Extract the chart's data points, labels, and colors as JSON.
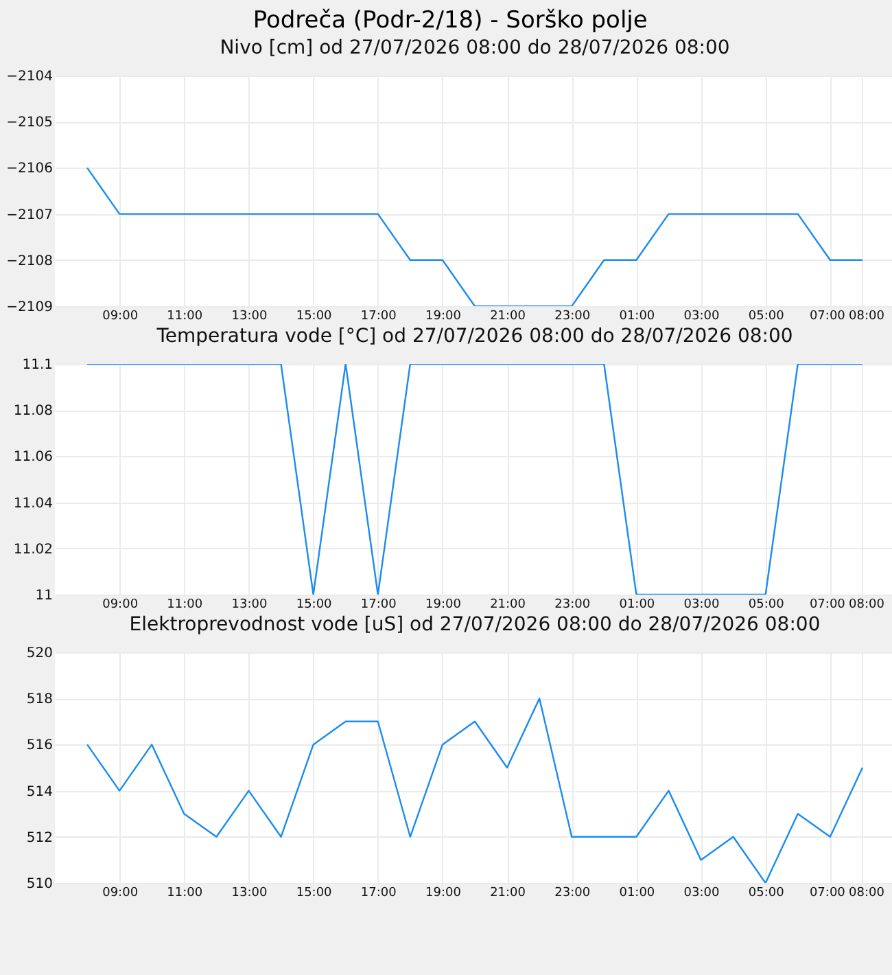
{
  "chart_data": [
    {
      "type": "line",
      "title": "Podreča (Podr-2/18) - Sorško polje",
      "subtitle": "Nivo [cm] od 27/07/2026 08:00 do 28/07/2026 08:00",
      "x": [
        "2026-07-27T08:00",
        "2026-07-27T09:00",
        "2026-07-27T10:00",
        "2026-07-27T11:00",
        "2026-07-27T12:00",
        "2026-07-27T13:00",
        "2026-07-27T14:00",
        "2026-07-27T15:00",
        "2026-07-27T16:00",
        "2026-07-27T17:00",
        "2026-07-27T18:00",
        "2026-07-27T19:00",
        "2026-07-27T20:00",
        "2026-07-27T21:00",
        "2026-07-27T22:00",
        "2026-07-27T23:00",
        "2026-07-28T00:00",
        "2026-07-28T01:00",
        "2026-07-28T02:00",
        "2026-07-28T03:00",
        "2026-07-28T04:00",
        "2026-07-28T05:00",
        "2026-07-28T06:00",
        "2026-07-28T07:00",
        "2026-07-28T08:00"
      ],
      "series": [
        {
          "color": "#1a8cf0",
          "values": [
            -2106,
            -2107,
            -2107,
            -2107,
            -2107,
            -2107,
            -2107,
            -2107,
            -2107,
            -2107,
            -2108,
            -2108,
            -2109,
            -2109,
            -2109,
            -2109,
            -2108,
            -2108,
            -2107,
            -2107,
            -2107,
            -2107,
            -2107,
            -2108,
            -2108
          ]
        }
      ],
      "xlim": [
        "2026-07-27T07:00",
        "2026-07-28T09:00"
      ],
      "xticks": [
        {
          "value": "2026-07-27T09:00",
          "label": "09:00"
        },
        {
          "value": "2026-07-27T11:00",
          "label": "11:00"
        },
        {
          "value": "2026-07-27T13:00",
          "label": "13:00"
        },
        {
          "value": "2026-07-27T15:00",
          "label": "15:00"
        },
        {
          "value": "2026-07-27T17:00",
          "label": "17:00"
        },
        {
          "value": "2026-07-27T19:00",
          "label": "19:00"
        },
        {
          "value": "2026-07-27T21:00",
          "label": "21:00"
        },
        {
          "value": "2026-07-27T23:00",
          "label": "23:00"
        },
        {
          "value": "2026-07-28T01:00",
          "label": "01:00"
        },
        {
          "value": "2026-07-28T03:00",
          "label": "03:00"
        },
        {
          "value": "2026-07-28T05:00",
          "label": "05:00"
        },
        {
          "value": "2026-07-28T07:00",
          "label": "07:00"
        },
        {
          "value": "2026-07-28T08:00",
          "label": "08:00"
        }
      ],
      "ylim": [
        -2109,
        -2104
      ],
      "yticks": [
        -2109,
        -2108,
        -2107,
        -2106,
        -2105,
        -2104
      ],
      "grid": true,
      "marker": "none",
      "line_style": "solid"
    },
    {
      "type": "line",
      "title": "Temperatura vode [°C] od 27/07/2026 08:00 do 28/07/2026 08:00",
      "x": [
        "2026-07-27T08:00",
        "2026-07-27T09:00",
        "2026-07-27T10:00",
        "2026-07-27T11:00",
        "2026-07-27T12:00",
        "2026-07-27T13:00",
        "2026-07-27T14:00",
        "2026-07-27T15:00",
        "2026-07-27T16:00",
        "2026-07-27T17:00",
        "2026-07-27T18:00",
        "2026-07-27T19:00",
        "2026-07-27T20:00",
        "2026-07-27T21:00",
        "2026-07-27T22:00",
        "2026-07-27T23:00",
        "2026-07-28T00:00",
        "2026-07-28T01:00",
        "2026-07-28T02:00",
        "2026-07-28T03:00",
        "2026-07-28T04:00",
        "2026-07-28T05:00",
        "2026-07-28T06:00",
        "2026-07-28T07:00",
        "2026-07-28T08:00"
      ],
      "series": [
        {
          "color": "#1a8cf0",
          "values": [
            11.1,
            11.1,
            11.1,
            11.1,
            11.1,
            11.1,
            11.1,
            11,
            11.1,
            11,
            11.1,
            11.1,
            11.1,
            11.1,
            11.1,
            11.1,
            11.1,
            11,
            11,
            11,
            11,
            11,
            11.1,
            11.1,
            11.1
          ]
        }
      ],
      "xlim": [
        "2026-07-27T07:00",
        "2026-07-28T09:00"
      ],
      "xticks": [
        {
          "value": "2026-07-27T09:00",
          "label": "09:00"
        },
        {
          "value": "2026-07-27T11:00",
          "label": "11:00"
        },
        {
          "value": "2026-07-27T13:00",
          "label": "13:00"
        },
        {
          "value": "2026-07-27T15:00",
          "label": "15:00"
        },
        {
          "value": "2026-07-27T17:00",
          "label": "17:00"
        },
        {
          "value": "2026-07-27T19:00",
          "label": "19:00"
        },
        {
          "value": "2026-07-27T21:00",
          "label": "21:00"
        },
        {
          "value": "2026-07-27T23:00",
          "label": "23:00"
        },
        {
          "value": "2026-07-28T01:00",
          "label": "01:00"
        },
        {
          "value": "2026-07-28T03:00",
          "label": "03:00"
        },
        {
          "value": "2026-07-28T05:00",
          "label": "05:00"
        },
        {
          "value": "2026-07-28T07:00",
          "label": "07:00"
        },
        {
          "value": "2026-07-28T08:00",
          "label": "08:00"
        }
      ],
      "ylim": [
        11,
        11.1
      ],
      "yticks": [
        11,
        11.02,
        11.04,
        11.06,
        11.08,
        11.1
      ],
      "grid": true,
      "marker": "none",
      "line_style": "solid"
    },
    {
      "type": "line",
      "title": "Elektroprevodnost vode [uS] od 27/07/2026 08:00 do 28/07/2026 08:00",
      "x": [
        "2026-07-27T08:00",
        "2026-07-27T09:00",
        "2026-07-27T10:00",
        "2026-07-27T11:00",
        "2026-07-27T12:00",
        "2026-07-27T13:00",
        "2026-07-27T14:00",
        "2026-07-27T15:00",
        "2026-07-27T16:00",
        "2026-07-27T17:00",
        "2026-07-27T18:00",
        "2026-07-27T19:00",
        "2026-07-27T20:00",
        "2026-07-27T21:00",
        "2026-07-27T22:00",
        "2026-07-27T23:00",
        "2026-07-28T00:00",
        "2026-07-28T01:00",
        "2026-07-28T02:00",
        "2026-07-28T03:00",
        "2026-07-28T04:00",
        "2026-07-28T05:00",
        "2026-07-28T06:00",
        "2026-07-28T07:00",
        "2026-07-28T08:00"
      ],
      "series": [
        {
          "color": "#1a8cf0",
          "values": [
            516,
            514,
            516,
            513,
            512,
            514,
            512,
            516,
            517,
            517,
            512,
            516,
            517,
            515,
            518,
            512,
            512,
            512,
            514,
            511,
            512,
            510,
            513,
            512,
            515
          ]
        }
      ],
      "xlim": [
        "2026-07-27T07:00",
        "2026-07-28T09:00"
      ],
      "xticks": [
        {
          "value": "2026-07-27T09:00",
          "label": "09:00"
        },
        {
          "value": "2026-07-27T11:00",
          "label": "11:00"
        },
        {
          "value": "2026-07-27T13:00",
          "label": "13:00"
        },
        {
          "value": "2026-07-27T15:00",
          "label": "15:00"
        },
        {
          "value": "2026-07-27T17:00",
          "label": "17:00"
        },
        {
          "value": "2026-07-27T19:00",
          "label": "19:00"
        },
        {
          "value": "2026-07-27T21:00",
          "label": "21:00"
        },
        {
          "value": "2026-07-27T23:00",
          "label": "23:00"
        },
        {
          "value": "2026-07-28T01:00",
          "label": "01:00"
        },
        {
          "value": "2026-07-28T03:00",
          "label": "03:00"
        },
        {
          "value": "2026-07-28T05:00",
          "label": "05:00"
        },
        {
          "value": "2026-07-28T07:00",
          "label": "07:00"
        },
        {
          "value": "2026-07-28T08:00",
          "label": "08:00"
        }
      ],
      "ylim": [
        510,
        520
      ],
      "yticks": [
        510,
        512,
        514,
        516,
        518,
        520
      ],
      "grid": true,
      "marker": "none",
      "line_style": "solid"
    }
  ]
}
